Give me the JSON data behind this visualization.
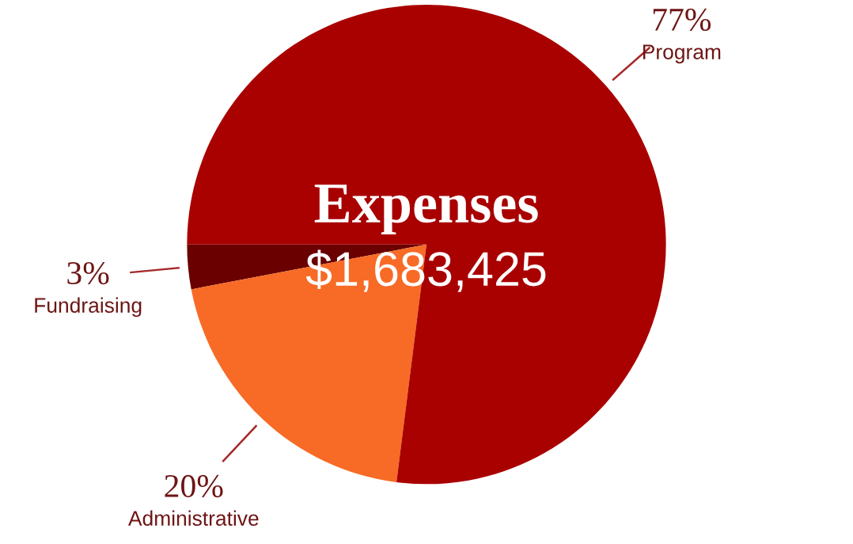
{
  "chart_data": {
    "type": "pie",
    "title": "Expenses",
    "subtitle": "$1,683,425",
    "categories": [
      "Fundraising",
      "Administrative",
      "Program"
    ],
    "values": [
      3,
      20,
      77
    ],
    "colors": [
      "#6a0000",
      "#f76b26",
      "#a90000"
    ],
    "value_labels": [
      "3%",
      "20%",
      "77%"
    ],
    "legend": false
  }
}
